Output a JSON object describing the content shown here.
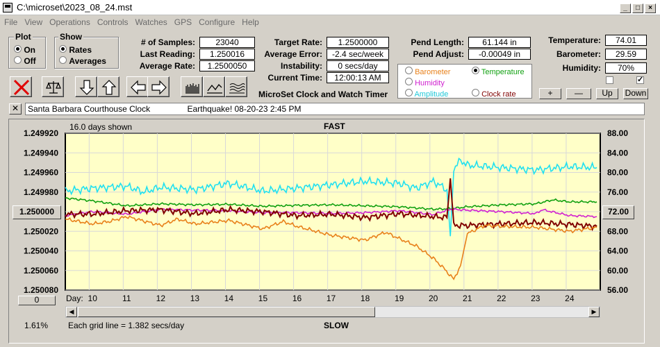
{
  "window": {
    "title": "C:\\microset\\2023_08_24.mst"
  },
  "menu": [
    "File",
    "View",
    "Operations",
    "Controls",
    "Watches",
    "GPS",
    "Configure",
    "Help"
  ],
  "plot_group": {
    "label": "Plot",
    "options": [
      "On",
      "Off"
    ],
    "selected": "On"
  },
  "show_group": {
    "label": "Show",
    "options": [
      "Rates",
      "Averages"
    ],
    "selected": "Rates"
  },
  "stats": {
    "samples_label": "# of Samples:",
    "samples": "23040",
    "last_reading_label": "Last Reading:",
    "last_reading": "1.250016",
    "average_rate_label": "Average Rate:",
    "average_rate": "1.2500050",
    "target_rate_label": "Target Rate:",
    "target_rate": "1.2500000",
    "average_error_label": "Average Error:",
    "average_error": "-2.4 sec/week",
    "instability_label": "Instability:",
    "instability": "0 secs/day",
    "current_time_label": "Current Time:",
    "current_time": "12:00:13 AM",
    "pend_length_label": "Pend Length:",
    "pend_length": "61.144 in",
    "pend_adjust_label": "Pend Adjust:",
    "pend_adjust": "-0.00049 in",
    "temperature_label": "Temperature:",
    "temperature": "74.01",
    "barometer_label": "Barometer:",
    "barometer": "29.59",
    "humidity_label": "Humidity:",
    "humidity": "70%"
  },
  "app_caption": "MicroSet Clock and Watch Timer",
  "watch_options": [
    {
      "label": "Barometer",
      "color": "#e8801a",
      "selected": false
    },
    {
      "label": "Temperature",
      "color": "#10a010",
      "selected": true
    },
    {
      "label": "Humidity",
      "color": "#d020d0",
      "selected": false
    },
    {
      "label": "Clock rate",
      "color": "#800000",
      "selected": false
    },
    {
      "label": "Amplitude",
      "color": "#20d0e0",
      "selected": false
    }
  ],
  "scale_buttons": {
    "plus": "+",
    "minus": "—",
    "up": "Up",
    "down": "Down"
  },
  "clock_name": "Santa Barbara Courthouse Clock",
  "note": "Earthquake! 08-20-23 2:45 PM",
  "close_x": "✕",
  "chart_header": {
    "days_shown": "16.0 days shown",
    "fast": "FAST",
    "slow": "SLOW",
    "grid_note": "Each grid line = 1.382 secs/day",
    "percent": "1.61%",
    "day_prefix": "Day:",
    "center_button": "1.250000",
    "right_button": "72.00",
    "bottom_button": "0"
  },
  "chart_data": {
    "type": "line",
    "x_label": "Day:",
    "x_ticks": [
      "10",
      "11",
      "12",
      "13",
      "14",
      "15",
      "16",
      "17",
      "18",
      "19",
      "20",
      "21",
      "22",
      "23",
      "24"
    ],
    "left_axis": {
      "ticks": [
        "1.249920",
        "1.249940",
        "1.249960",
        "1.249980",
        "1.250000",
        "1.250020",
        "1.250040",
        "1.250060",
        "1.250080"
      ],
      "range": [
        1.24992,
        1.25008
      ],
      "inverted": true
    },
    "right_axis": {
      "ticks": [
        "88.00",
        "84.00",
        "80.00",
        "76.00",
        "72.00",
        "68.00",
        "64.00",
        "60.00",
        "56.00"
      ],
      "range": [
        56,
        88
      ]
    },
    "x_range": [
      9.2,
      24.9
    ],
    "grid": true,
    "background": "#ffffc8",
    "series": [
      {
        "name": "Amplitude",
        "color": "#20e0f0",
        "axis": "right",
        "x": [
          9.2,
          10,
          11,
          11.5,
          12,
          13,
          14,
          15,
          16,
          17,
          18,
          19,
          19.5,
          20,
          20.4,
          20.5,
          20.6,
          20.8,
          21,
          22,
          23,
          24,
          24.8
        ],
        "y": [
          76.2,
          76.8,
          77.2,
          76.0,
          77.0,
          76.5,
          77.8,
          76.2,
          76.8,
          77.5,
          78.2,
          77.8,
          76.8,
          78.2,
          76.5,
          67.0,
          80.8,
          82.5,
          81.5,
          81.0,
          80.5,
          81.2,
          81.0
        ]
      },
      {
        "name": "Temperature",
        "color": "#10a010",
        "axis": "right",
        "x": [
          9.2,
          10,
          11,
          12,
          13,
          14,
          15,
          16,
          17,
          18,
          19,
          20,
          20.5,
          21,
          22,
          23,
          23.5,
          24,
          24.8
        ],
        "y": [
          74.8,
          74.2,
          73.2,
          73.6,
          73.4,
          73.5,
          73.1,
          73.3,
          73.4,
          73.2,
          73.0,
          72.5,
          72.6,
          73.0,
          73.4,
          73.6,
          74.4,
          74.0,
          74.0
        ]
      },
      {
        "name": "Humidity",
        "color": "#d020d0",
        "axis": "right",
        "x": [
          9.2,
          10,
          11,
          12,
          13,
          14,
          15,
          16,
          17,
          18,
          19,
          20,
          20.5,
          21,
          22,
          23,
          23.2,
          24,
          24.8
        ],
        "y": [
          71.2,
          72.0,
          71.5,
          72.5,
          72.3,
          72.2,
          71.8,
          71.8,
          71.6,
          71.8,
          72.2,
          71.4,
          72.5,
          72.3,
          72.0,
          71.6,
          72.4,
          71.2,
          71.0
        ]
      },
      {
        "name": "Clock rate",
        "color": "#800000",
        "axis": "right",
        "x": [
          9.2,
          10,
          11,
          12,
          13,
          14,
          15,
          16,
          17,
          18,
          19,
          20,
          20.4,
          20.5,
          20.6,
          21,
          22,
          23,
          24,
          24.8
        ],
        "y": [
          71.5,
          71.5,
          72.2,
          72.4,
          71.6,
          72.4,
          72.0,
          71.2,
          71.5,
          70.8,
          71.6,
          71.0,
          70.8,
          78.8,
          69.2,
          69.2,
          69.5,
          69.8,
          69.4,
          69.0
        ]
      },
      {
        "name": "Barometer",
        "color": "#e8801a",
        "axis": "right",
        "x": [
          9.2,
          10,
          10.5,
          11,
          12,
          12.5,
          13,
          14,
          15,
          15.6,
          16,
          17,
          18,
          18.6,
          19,
          19.5,
          20,
          20.3,
          20.6,
          20.8,
          21,
          21.5,
          22,
          23,
          24,
          24.8
        ],
        "y": [
          70.5,
          69.5,
          70.0,
          71.0,
          69.2,
          70.5,
          69.5,
          70.2,
          68.5,
          70.0,
          69.0,
          67.2,
          66.2,
          67.8,
          66.5,
          65.0,
          62.5,
          60.5,
          58.2,
          61.0,
          67.5,
          69.2,
          69.0,
          68.8,
          68.0,
          68.8
        ]
      }
    ]
  }
}
